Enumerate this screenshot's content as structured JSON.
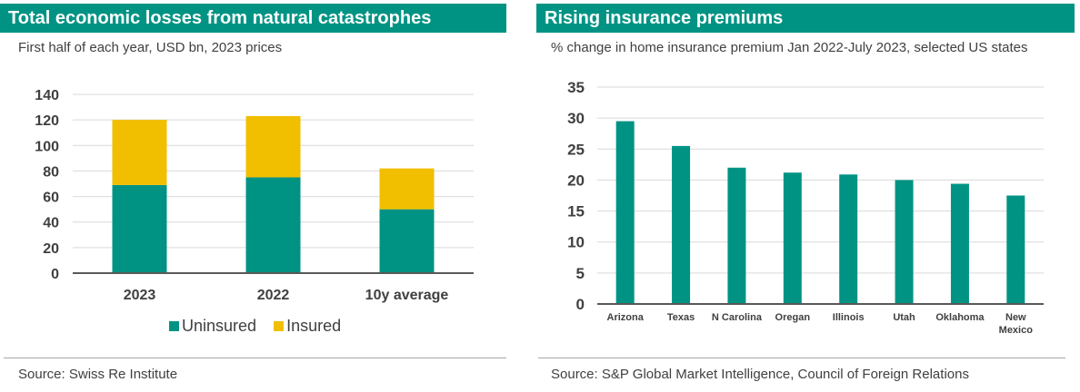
{
  "left_panel": {
    "title": "Total economic losses from natural catastrophes",
    "subtitle": "First half of each year, USD bn, 2023 prices",
    "source": "Source: Swiss Re Institute"
  },
  "right_panel": {
    "title": "Rising insurance premiums",
    "subtitle": "% change in home insurance premium Jan 2022-July 2023, selected US states",
    "source": "Source: S&P Global Market Intelligence, Council of Foreign Relations"
  },
  "colors": {
    "teal": "#009383",
    "yellow": "#F2BE00",
    "grid": "#d9d9d9",
    "axis": "#595959",
    "text": "#404040"
  },
  "chart_data": [
    {
      "type": "bar",
      "stacked": true,
      "categories": [
        "2023",
        "2022",
        "10y average"
      ],
      "series": [
        {
          "name": "Uninsured",
          "values": [
            69,
            75,
            50
          ],
          "color": "#009383"
        },
        {
          "name": "Insured",
          "values": [
            51,
            48,
            32
          ],
          "color": "#F2BE00"
        }
      ],
      "ylim": [
        0,
        140
      ],
      "yticks": [
        0,
        20,
        40,
        60,
        80,
        100,
        120,
        140
      ],
      "grid": true,
      "legend_position": "bottom"
    },
    {
      "type": "bar",
      "categories": [
        "Arizona",
        "Texas",
        "N Carolina",
        "Oregan",
        "Illinois",
        "Utah",
        "Oklahoma",
        "New Mexico"
      ],
      "values": [
        29.5,
        25.5,
        22.0,
        21.2,
        20.9,
        20.0,
        19.4,
        17.5
      ],
      "ylim": [
        0,
        35
      ],
      "yticks": [
        0,
        5,
        10,
        15,
        20,
        25,
        30,
        35
      ],
      "grid": true,
      "color": "#009383"
    }
  ]
}
